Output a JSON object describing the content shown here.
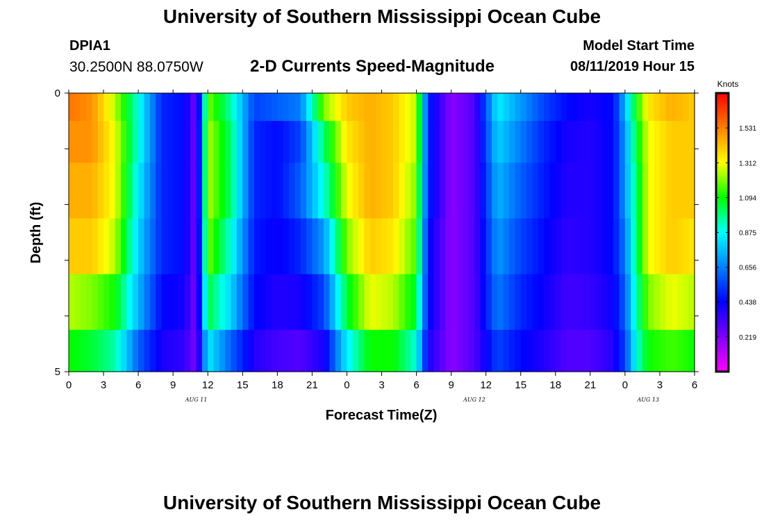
{
  "header": {
    "institution_title": "University of Southern Mississippi Ocean Cube",
    "station_id": "DPIA1",
    "station_coords": "30.2500N 88.0750W",
    "plot_title": "2-D Currents Speed-Magnitude",
    "model_start_label": "Model Start Time",
    "model_start_value": "08/11/2019 Hour 15"
  },
  "footer": {
    "institution_title": "University of Southern Mississippi Ocean Cube"
  },
  "chart_data": {
    "type": "heatmap",
    "title": "2-D Currents Speed-Magnitude",
    "xlabel": "Forecast Time(Z)",
    "ylabel": "Depth (ft)",
    "x_tick_labels": [
      "0",
      "3",
      "6",
      "9",
      "12",
      "15",
      "18",
      "21",
      "0",
      "3",
      "6",
      "9",
      "12",
      "15",
      "18",
      "21",
      "0",
      "3",
      "6"
    ],
    "date_labels": [
      {
        "text": "AUG 11",
        "at_hour": 11
      },
      {
        "text": "AUG 12",
        "at_hour": 35
      },
      {
        "text": "AUG 13",
        "at_hour": 50
      }
    ],
    "y_tick_labels": [
      "0",
      "5"
    ],
    "ylim": [
      0,
      5
    ],
    "x_hours_range": [
      0,
      54
    ],
    "colorbar": {
      "label": "Knots",
      "ticks": [
        1.531,
        1.312,
        1.094,
        0.875,
        0.656,
        0.438,
        0.219
      ],
      "range": [
        0.0,
        1.75
      ],
      "colors": [
        "#ff00ff",
        "#8000ff",
        "#0000ff",
        "#0080ff",
        "#00ffff",
        "#00ff00",
        "#ffff00",
        "#ff8000",
        "#ff0000"
      ]
    },
    "depth_layers_ft": [
      0.25,
      0.75,
      1.75,
      2.75,
      3.75,
      4.75
    ],
    "series_keyframes": {
      "hours": [
        0,
        2,
        4,
        6,
        8,
        10,
        11,
        12,
        14,
        16,
        18,
        20,
        22,
        24,
        26,
        28,
        30,
        31,
        33,
        35,
        37,
        39,
        41,
        43,
        45,
        47,
        48,
        49,
        50,
        52,
        54
      ],
      "rows": [
        [
          1.55,
          1.5,
          1.25,
          0.9,
          0.5,
          0.45,
          0.22,
          1.2,
          0.95,
          0.55,
          0.6,
          0.65,
          1.2,
          1.4,
          1.45,
          1.4,
          1.25,
          0.5,
          0.2,
          0.3,
          0.85,
          0.7,
          0.55,
          0.45,
          0.4,
          0.45,
          0.75,
          1.1,
          1.35,
          1.45,
          1.4
        ],
        [
          1.5,
          1.5,
          1.3,
          0.9,
          0.5,
          0.45,
          0.22,
          1.25,
          1.0,
          0.5,
          0.45,
          0.55,
          1.0,
          1.35,
          1.45,
          1.4,
          1.25,
          0.5,
          0.2,
          0.3,
          0.8,
          0.65,
          0.5,
          0.4,
          0.38,
          0.45,
          0.7,
          1.05,
          1.3,
          1.4,
          1.4
        ],
        [
          1.45,
          1.45,
          1.3,
          0.85,
          0.5,
          0.45,
          0.22,
          1.25,
          1.0,
          0.5,
          0.45,
          0.6,
          0.9,
          1.3,
          1.45,
          1.4,
          1.2,
          0.5,
          0.2,
          0.3,
          0.75,
          0.6,
          0.48,
          0.38,
          0.38,
          0.45,
          0.7,
          1.0,
          1.3,
          1.4,
          1.4
        ],
        [
          1.4,
          1.4,
          1.25,
          0.8,
          0.5,
          0.45,
          0.22,
          1.2,
          0.9,
          0.48,
          0.42,
          0.5,
          0.7,
          1.2,
          1.4,
          1.35,
          1.15,
          0.45,
          0.2,
          0.3,
          0.7,
          0.55,
          0.45,
          0.36,
          0.38,
          0.45,
          0.65,
          1.0,
          1.3,
          1.4,
          1.35
        ],
        [
          1.25,
          1.2,
          1.1,
          0.75,
          0.45,
          0.4,
          0.22,
          1.05,
          0.8,
          0.45,
          0.38,
          0.4,
          0.55,
          1.05,
          1.3,
          1.25,
          1.05,
          0.45,
          0.2,
          0.3,
          0.65,
          0.5,
          0.42,
          0.33,
          0.35,
          0.42,
          0.6,
          0.95,
          1.2,
          1.3,
          1.25
        ],
        [
          1.1,
          1.05,
          0.95,
          0.6,
          0.4,
          0.35,
          0.22,
          0.85,
          0.6,
          0.38,
          0.32,
          0.3,
          0.4,
          0.85,
          1.1,
          1.1,
          0.9,
          0.4,
          0.2,
          0.3,
          0.55,
          0.45,
          0.38,
          0.3,
          0.3,
          0.38,
          0.55,
          0.9,
          1.1,
          1.15,
          1.1
        ]
      ]
    }
  }
}
